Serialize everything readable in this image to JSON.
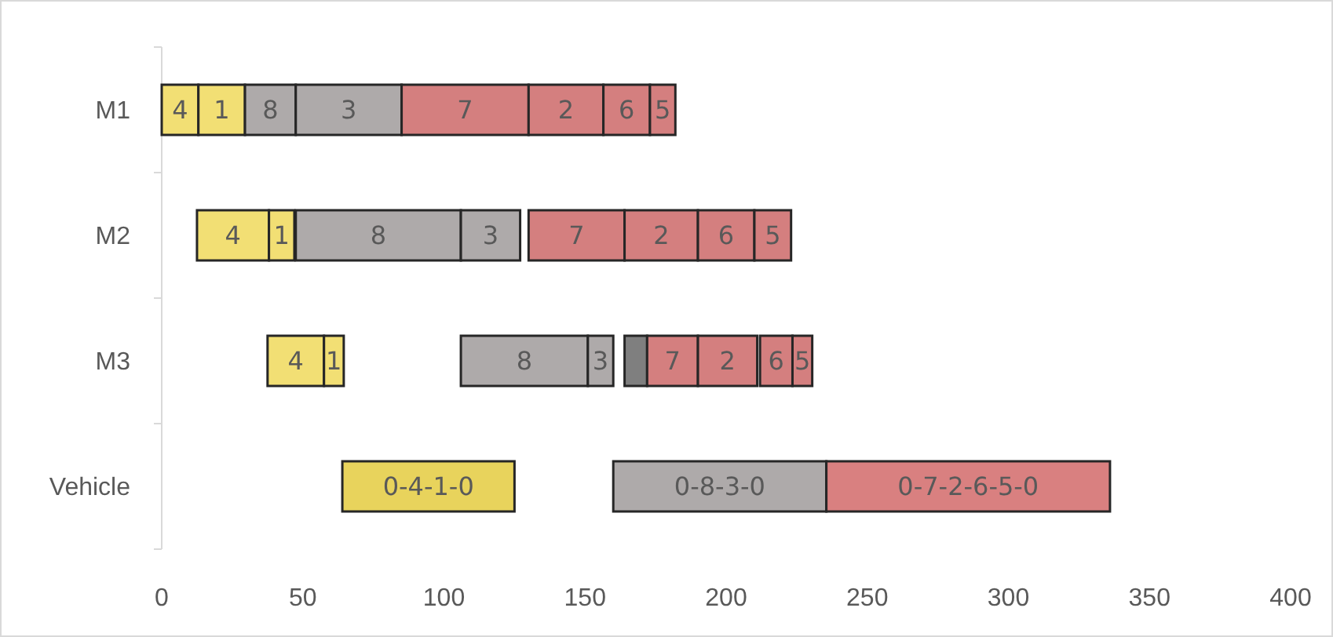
{
  "chart_data": {
    "type": "bar",
    "orientation": "horizontal",
    "categories": [
      "M1",
      "M2",
      "M3",
      "Vehicle"
    ],
    "xlim": [
      0,
      400
    ],
    "xticks": [
      0,
      50,
      100,
      150,
      200,
      250,
      300,
      350,
      400
    ],
    "grid": false,
    "series": [
      {
        "name": "4",
        "color": "#f2df74",
        "base": [
          0,
          12.5,
          37.5,
          null
        ],
        "values": [
          13,
          25.5,
          20,
          null
        ]
      },
      {
        "name": "1",
        "color": "#f2df74",
        "base": [
          13,
          38,
          57.5,
          null
        ],
        "values": [
          16.5,
          9,
          7,
          null
        ]
      },
      {
        "name": "8",
        "color": "#aeaaaa",
        "base": [
          29.5,
          47.5,
          106,
          null
        ],
        "values": [
          18,
          58.5,
          45,
          null
        ]
      },
      {
        "name": "3",
        "color": "#aeaaaa",
        "base": [
          47.5,
          106,
          151,
          null
        ],
        "values": [
          37.5,
          21,
          9,
          null
        ]
      },
      {
        "color": "#7f7f7f",
        "base": [
          null,
          null,
          164,
          null
        ],
        "values": [
          null,
          null,
          8,
          null
        ]
      },
      {
        "name": "7",
        "color": "#d47f7f",
        "base": [
          85,
          130,
          172,
          null
        ],
        "values": [
          45,
          34,
          18,
          null
        ]
      },
      {
        "name": "2",
        "color": "#d47f7f",
        "base": [
          130,
          164,
          190,
          null
        ],
        "values": [
          26.5,
          26,
          21,
          null
        ]
      },
      {
        "name": "6",
        "color": "#d47f7f",
        "base": [
          156.5,
          190,
          212,
          null
        ],
        "values": [
          16.5,
          20,
          11.5,
          null
        ]
      },
      {
        "name": "5",
        "color": "#d47f7f",
        "base": [
          173,
          210,
          223.5,
          null
        ],
        "values": [
          9,
          13,
          7,
          null
        ]
      },
      {
        "name": "0-4-1-0",
        "color": "#e8d35c",
        "base": [
          null,
          null,
          null,
          64
        ],
        "values": [
          null,
          null,
          null,
          61
        ]
      },
      {
        "name": "0-8-3-0",
        "color": "#aeaaaa",
        "base": [
          null,
          null,
          null,
          160
        ],
        "values": [
          null,
          null,
          null,
          75.5
        ]
      },
      {
        "name": "0-7-2-6-5-0",
        "color": "#d98080",
        "base": [
          null,
          null,
          null,
          235.5
        ],
        "values": [
          null,
          null,
          null,
          100.5
        ]
      }
    ]
  }
}
